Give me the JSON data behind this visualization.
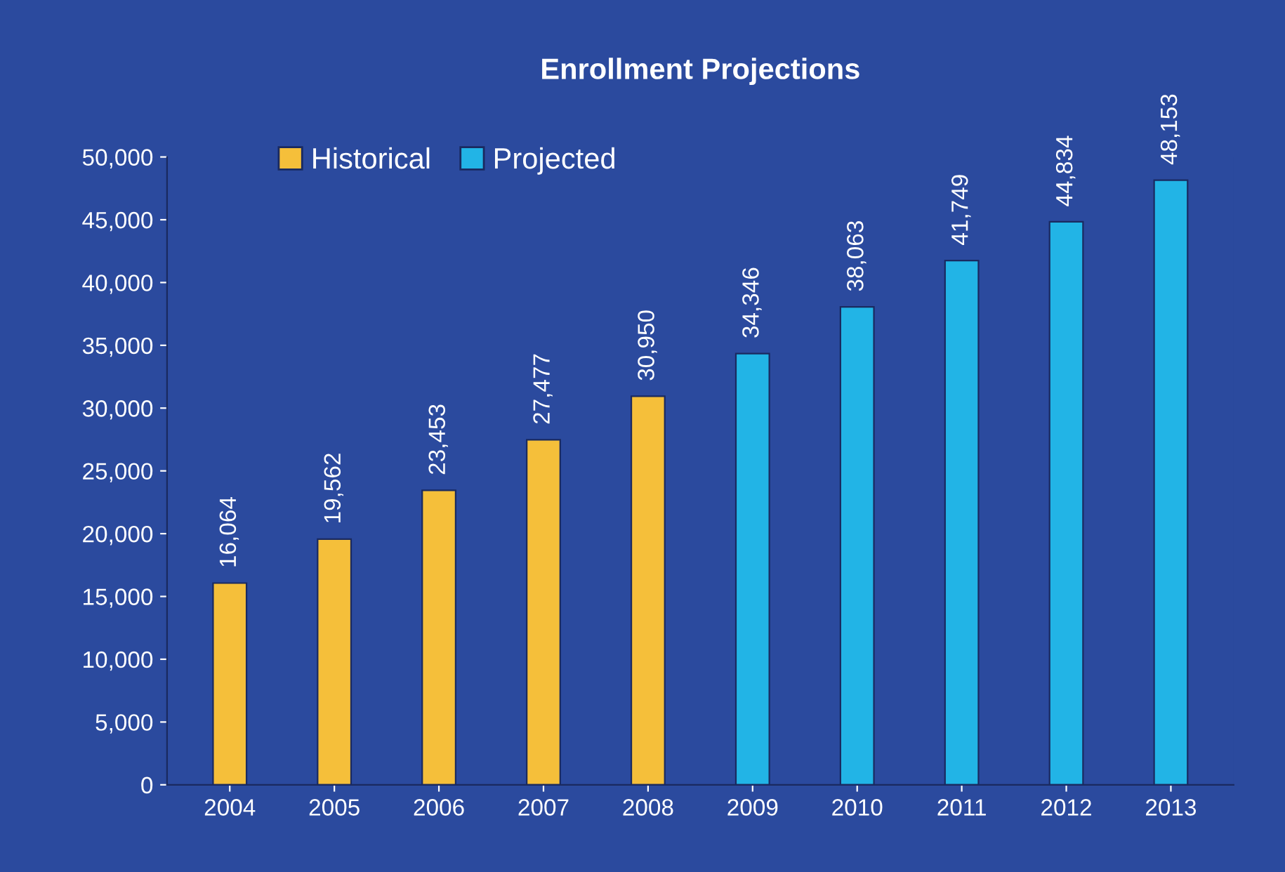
{
  "chart_data": {
    "type": "bar",
    "title": "Enrollment Projections",
    "categories": [
      "2004",
      "2005",
      "2006",
      "2007",
      "2008",
      "2009",
      "2010",
      "2011",
      "2012",
      "2013"
    ],
    "series": [
      {
        "name": "Historical",
        "color": "#f5bf3a",
        "values": [
          16064,
          19562,
          23453,
          27477,
          30950,
          null,
          null,
          null,
          null,
          null
        ],
        "value_labels": [
          "16,064",
          "19,562",
          "23,453",
          "27,477",
          "30,950",
          null,
          null,
          null,
          null,
          null
        ]
      },
      {
        "name": "Projected",
        "color": "#22b4e6",
        "values": [
          null,
          null,
          null,
          null,
          null,
          34346,
          38063,
          41749,
          44834,
          48153
        ],
        "value_labels": [
          null,
          null,
          null,
          null,
          null,
          "34,346",
          "38,063",
          "41,749",
          "44,834",
          "48,153"
        ]
      }
    ],
    "ylim": [
      0,
      50000
    ],
    "yticks": [
      0,
      {
        "value": 5000,
        "label": "5,000"
      },
      {
        "value": 10000,
        "label": "10,000"
      },
      {
        "value": 15000,
        "label": "15,000"
      },
      {
        "value": 20000,
        "label": "20,000"
      },
      {
        "value": 25000,
        "label": "25,000"
      },
      {
        "value": 30000,
        "label": "30,000"
      },
      {
        "value": 35000,
        "label": "35,000"
      },
      {
        "value": 40000,
        "label": "40,000"
      },
      {
        "value": 45000,
        "label": "45,000"
      },
      {
        "value": 50000,
        "label": "50,000"
      }
    ],
    "grid": false,
    "legend": "top left"
  }
}
